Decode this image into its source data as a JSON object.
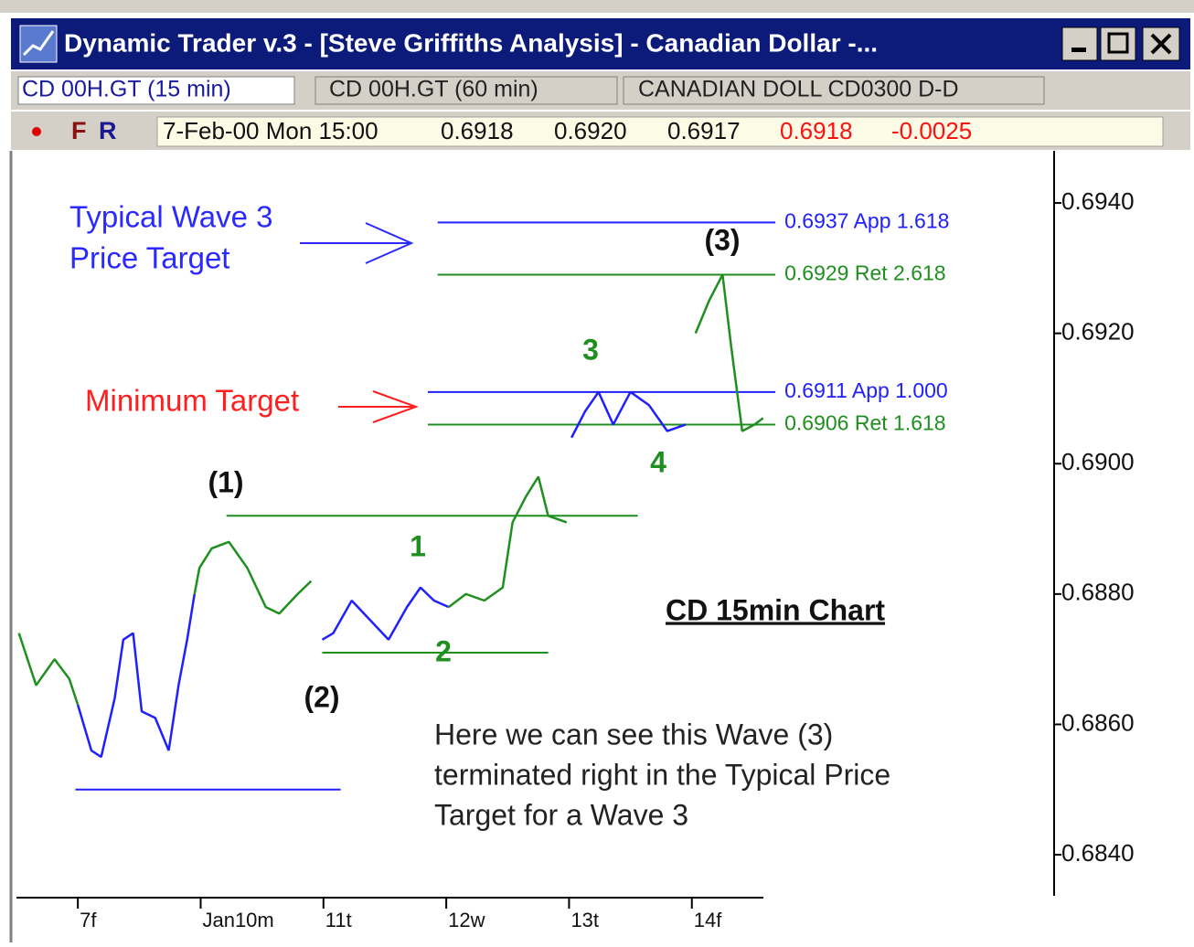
{
  "window": {
    "title": "Dynamic Trader v.3 - [Steve Griffiths Analysis] - Canadian Dollar -...",
    "tabs": [
      "CD  00H.GT (15 min)",
      "CD  00H.GT (60 min)",
      "CANADIAN DOLL CD0300 D-D"
    ],
    "flags": [
      "F",
      "R"
    ],
    "quote": [
      "7-Feb-00 Mon 15:00",
      "0.6918",
      "0.6920",
      "0.6917",
      "0.6918",
      "-0.0025"
    ]
  },
  "chart_data": {
    "type": "line",
    "title": "CD 15min Chart",
    "note": [
      "Here we can see this Wave (3)",
      "terminated right in the Typical Price",
      "Target for a Wave 3"
    ],
    "callouts": [
      {
        "text": [
          "Typical Wave 3",
          "Price Target"
        ],
        "color": "#2a2aff"
      },
      {
        "text": [
          "Minimum Target"
        ],
        "color": "#ff1f1f"
      }
    ],
    "wave_labels": [
      {
        "text": "(1)",
        "color": "#111111"
      },
      {
        "text": "(2)",
        "color": "#111111"
      },
      {
        "text": "(3)",
        "color": "#111111"
      },
      {
        "text": "1",
        "color": "#1f8f1f"
      },
      {
        "text": "2",
        "color": "#1f8f1f"
      },
      {
        "text": "3",
        "color": "#1f8f1f"
      },
      {
        "text": "4",
        "color": "#1f8f1f"
      }
    ],
    "xlim": [
      -0.5,
      7.95
    ],
    "xticks": [
      {
        "value": 0,
        "label": "7f"
      },
      {
        "value": 1,
        "label": "Jan10m"
      },
      {
        "value": 2,
        "label": "11t"
      },
      {
        "value": 3,
        "label": "12w"
      },
      {
        "value": 4,
        "label": "13t"
      },
      {
        "value": 5,
        "label": "14f"
      }
    ],
    "ylim": [
      0.6833,
      0.6948
    ],
    "yticks": [
      {
        "value": 0.684,
        "label": "0.6840"
      },
      {
        "value": 0.686,
        "label": "0.6860"
      },
      {
        "value": 0.688,
        "label": "0.6880"
      },
      {
        "value": 0.69,
        "label": "0.6900"
      },
      {
        "value": 0.692,
        "label": "0.6920"
      },
      {
        "value": 0.694,
        "label": "0.6940"
      }
    ],
    "series": [
      {
        "color": "#1f8f1f",
        "x": [
          -0.48,
          -0.34,
          -0.19,
          -0.07,
          0
        ],
        "values": [
          0.6874,
          0.6866,
          0.687,
          0.6867,
          0.6863
        ]
      },
      {
        "color": "#2020ff",
        "x": [
          0,
          0.11,
          0.19,
          0.3,
          0.37,
          0.45,
          0.52,
          0.63,
          0.74,
          0.82,
          0.89,
          0.95
        ],
        "values": [
          0.6863,
          0.6856,
          0.6855,
          0.6864,
          0.6873,
          0.6874,
          0.6862,
          0.6861,
          0.6856,
          0.6866,
          0.6873,
          0.688
        ]
      },
      {
        "color": "#1f8f1f",
        "x": [
          0.95,
          0.99,
          1.09,
          1.23,
          1.38,
          1.53,
          1.64,
          1.79,
          1.9
        ],
        "values": [
          0.688,
          0.6884,
          0.6887,
          0.6888,
          0.6884,
          0.6878,
          0.6877,
          0.688,
          0.6882
        ]
      },
      {
        "color": "#2020ff",
        "x": [
          1.99,
          2.08,
          2.23,
          2.38,
          2.53,
          2.68,
          2.79,
          2.9,
          3.02
        ],
        "values": [
          0.6873,
          0.6874,
          0.6879,
          0.6876,
          0.6873,
          0.6878,
          0.6881,
          0.6879,
          0.6878
        ]
      },
      {
        "color": "#1f8f1f",
        "x": [
          3.02,
          3.16,
          3.31,
          3.46,
          3.54,
          3.65,
          3.75,
          3.83,
          3.98
        ],
        "values": [
          0.6878,
          0.688,
          0.6879,
          0.6881,
          0.6891,
          0.6895,
          0.6898,
          0.6892,
          0.6891
        ]
      },
      {
        "color": "#2020ff",
        "x": [
          4.02,
          4.13,
          4.24,
          4.36,
          4.5,
          4.65,
          4.8,
          4.95
        ],
        "values": [
          0.6904,
          0.6908,
          0.6911,
          0.6906,
          0.6911,
          0.6909,
          0.6905,
          0.6906
        ]
      },
      {
        "color": "#1f8f1f",
        "x": [
          5.03,
          5.14,
          5.25,
          5.32,
          5.41,
          5.51,
          5.58
        ],
        "values": [
          0.692,
          0.6925,
          0.6929,
          0.6918,
          0.6905,
          0.6906,
          0.6907
        ]
      }
    ],
    "levels": [
      {
        "value": 0.6937,
        "label": "0.6937 App 1.618",
        "color": "#2020ff",
        "x": [
          2.93,
          5.68
        ]
      },
      {
        "value": 0.6929,
        "label": "0.6929 Ret 2.618",
        "color": "#1f8f1f",
        "x": [
          2.93,
          5.68
        ]
      },
      {
        "value": 0.6911,
        "label": "0.6911 App 1.000",
        "color": "#2020ff",
        "x": [
          2.85,
          5.68
        ]
      },
      {
        "value": 0.6906,
        "label": "0.6906 Ret 1.618",
        "color": "#1f8f1f",
        "x": [
          2.85,
          5.68
        ]
      }
    ],
    "lines": [
      {
        "value": 0.6892,
        "color": "#1f8f1f",
        "x": [
          1.21,
          4.56
        ]
      },
      {
        "value": 0.6871,
        "color": "#1f8f1f",
        "x": [
          1.99,
          3.83
        ]
      },
      {
        "value": 0.685,
        "color": "#2020ff",
        "x": [
          -0.02,
          2.14
        ]
      }
    ]
  }
}
